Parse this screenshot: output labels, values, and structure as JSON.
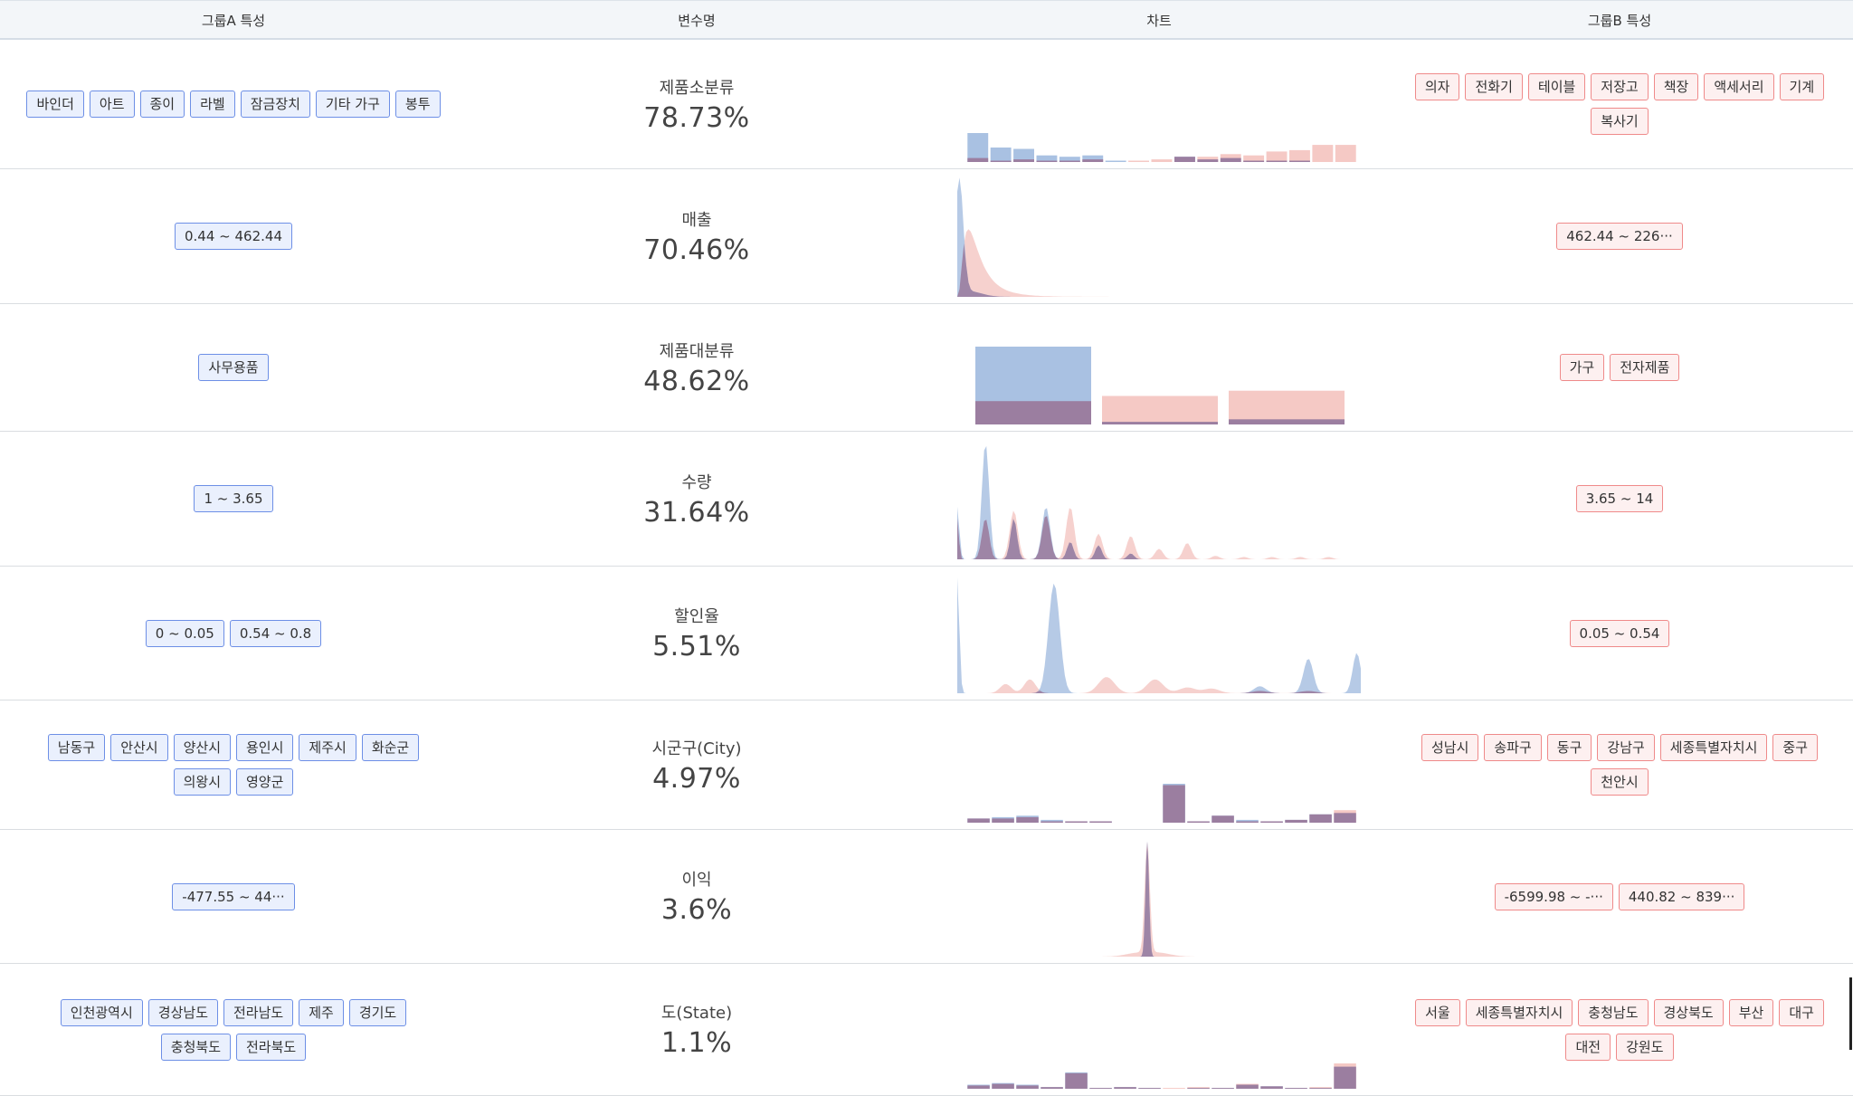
{
  "header": {
    "group_a": "그룹A 특성",
    "variable": "변수명",
    "chart": "차트",
    "group_b": "그룹B 특성"
  },
  "colors": {
    "group_a": "#a9c1e2",
    "group_b": "#f5c9c5",
    "overlap": "#9b7ea0",
    "tag_a_border": "#6d8fe6",
    "tag_b_border": "#ef8a8a"
  },
  "rows": [
    {
      "name": "제품소분류",
      "pct": "78.73%",
      "a_tags": [
        "바인더",
        "아트",
        "종이",
        "라벨",
        "잠금장치",
        "기타 가구",
        "봉투"
      ],
      "b_tags": [
        "의자",
        "전화기",
        "테이블",
        "저장고",
        "책장",
        "액세서리",
        "기계",
        "복사기"
      ],
      "chart_type": "bar",
      "a_values": [
        22,
        11,
        10,
        5,
        4,
        5,
        1,
        0,
        0,
        4,
        2,
        3,
        1,
        1,
        1,
        0,
        0
      ],
      "b_values": [
        3,
        1,
        2,
        1,
        1,
        2,
        0,
        1,
        2,
        4,
        4,
        6,
        5,
        8,
        9,
        13,
        13
      ]
    },
    {
      "name": "매출",
      "pct": "70.46%",
      "a_tags": [
        "0.44 ~ 462.44"
      ],
      "b_tags": [
        "462.44 ~ 226···"
      ],
      "chart_type": "density"
    },
    {
      "name": "제품대분류",
      "pct": "48.62%",
      "a_tags": [
        "사무용품"
      ],
      "b_tags": [
        "가구",
        "전자제품"
      ],
      "chart_type": "bar",
      "a_values": [
        60,
        2,
        4
      ],
      "b_values": [
        18,
        22,
        26
      ]
    },
    {
      "name": "수량",
      "pct": "31.64%",
      "a_tags": [
        "1 ~ 3.65"
      ],
      "b_tags": [
        "3.65 ~ 14"
      ],
      "chart_type": "density"
    },
    {
      "name": "할인율",
      "pct": "5.51%",
      "a_tags": [
        "0 ~ 0.05",
        "0.54 ~ 0.8"
      ],
      "b_tags": [
        "0.05 ~ 0.54"
      ],
      "chart_type": "density"
    },
    {
      "name": "시군구(City)",
      "pct": "4.97%",
      "a_tags": [
        "남동구",
        "안산시",
        "양산시",
        "용인시",
        "제주시",
        "화순군",
        "의왕시",
        "영양군"
      ],
      "b_tags": [
        "성남시",
        "송파구",
        "동구",
        "강남구",
        "세종특별자치시",
        "중구",
        "천안시"
      ],
      "chart_type": "bar",
      "a_values": [
        3,
        4,
        5,
        2,
        1,
        1,
        0,
        0,
        28,
        1,
        5,
        2,
        1,
        2,
        6,
        7
      ],
      "b_values": [
        3,
        3,
        4,
        1,
        1,
        1,
        0,
        0,
        27,
        1,
        5,
        1,
        1,
        2,
        6,
        9
      ]
    },
    {
      "name": "이익",
      "pct": "3.6%",
      "a_tags": [
        "-477.55 ~ 44···"
      ],
      "b_tags": [
        "-6599.98 ~ -···",
        "440.82 ~ 839···"
      ],
      "chart_type": "density"
    },
    {
      "name": "도(State)",
      "pct": "1.1%",
      "a_tags": [
        "인천광역시",
        "경상남도",
        "전라남도",
        "제주",
        "경기도",
        "충청북도",
        "전라북도"
      ],
      "b_tags": [
        "서울",
        "세종특별자치시",
        "충청남도",
        "경상북도",
        "부산",
        "대구",
        "대전",
        "강원도"
      ],
      "chart_type": "bar",
      "a_values": [
        5,
        7,
        5,
        2,
        20,
        1,
        2,
        1,
        0,
        1,
        1,
        5,
        3,
        1,
        1,
        27
      ],
      "b_values": [
        4,
        6,
        4,
        2,
        19,
        1,
        2,
        1,
        1,
        2,
        1,
        6,
        3,
        1,
        2,
        31
      ]
    }
  ]
}
